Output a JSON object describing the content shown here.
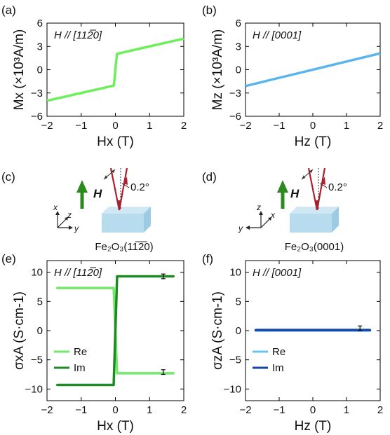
{
  "panel_labels": [
    "(a)",
    "(b)",
    "(c)",
    "(d)",
    "(e)",
    "(f)"
  ],
  "colors": {
    "green_light": "#6cf05a",
    "green_re": "#72e96a",
    "green_im": "#1f8a22",
    "blue_line": "#5ab4ee",
    "blue_re": "#6dc3f0",
    "blue_im": "#1545a6",
    "field_arrow": "#2c8a1e",
    "beam": "#b01e2c",
    "crystal_top": "#cfe8f4",
    "crystal_front": "#b7dcee",
    "crystal_side": "#9ccbe4"
  },
  "diagram_c": {
    "field_label": "H",
    "angle_label": "0.2°",
    "axes": [
      "x",
      "z",
      "y"
    ],
    "crystal_label": "Fe₂O₃(11̅2̅0)"
  },
  "diagram_d": {
    "field_label": "H",
    "angle_label": "0.2°",
    "axes": [
      "z",
      "x",
      "y"
    ],
    "crystal_label": "Fe₂O₃(0001)"
  },
  "chart_data": [
    {
      "id": "a",
      "type": "line",
      "annotation": "H // [112̅0]",
      "xlabel": "Hx (T)",
      "ylabel": "Mx (×10³A/m)",
      "xlim": [
        -2,
        2
      ],
      "ylim": [
        -6,
        6
      ],
      "xticks": [
        -2,
        -1,
        0,
        1,
        2
      ],
      "yticks": [
        -6,
        -3,
        0,
        3,
        6
      ],
      "series": [
        {
          "color": "#6cf05a",
          "x": [
            -2,
            -1,
            -0.05,
            -0.02,
            0.02,
            0.05,
            1,
            2
          ],
          "y": [
            -4.0,
            -3.0,
            -2.05,
            -1.0,
            1.0,
            2.05,
            3.0,
            4.0
          ]
        }
      ]
    },
    {
      "id": "b",
      "type": "line",
      "annotation": "H // [0001]",
      "xlabel": "Hz (T)",
      "ylabel": "Mz (×10³A/m)",
      "xlim": [
        -2,
        2
      ],
      "ylim": [
        -6,
        6
      ],
      "xticks": [
        -2,
        -1,
        0,
        1,
        2
      ],
      "yticks": [
        -6,
        -3,
        0,
        3,
        6
      ],
      "series": [
        {
          "color": "#5ab4ee",
          "x": [
            -2,
            2
          ],
          "y": [
            -2.1,
            2.1
          ]
        }
      ]
    },
    {
      "id": "e",
      "type": "line",
      "annotation": "H // [112̅0]",
      "xlabel": "Hx (T)",
      "ylabel": "σxA (S·cm-1)",
      "xlim": [
        -2,
        2
      ],
      "ylim": [
        -12,
        12
      ],
      "xticks": [
        -2,
        -1,
        0,
        1,
        2
      ],
      "yticks": [
        -10,
        -5,
        0,
        5,
        10
      ],
      "legend_position": "bottom-left",
      "errorbar": [
        {
          "x": 1.4,
          "y": 9.3,
          "err": 0.4
        },
        {
          "x": 1.4,
          "y": -7.1,
          "err": 0.4
        }
      ],
      "series": [
        {
          "name": "Re",
          "color": "#72e96a",
          "x": [
            -1.7,
            -0.05,
            0.05,
            1.7
          ],
          "y": [
            7.3,
            7.3,
            -7.3,
            -7.3
          ]
        },
        {
          "name": "Im",
          "color": "#1f8a22",
          "x": [
            -1.7,
            -0.05,
            0.05,
            1.7
          ],
          "y": [
            -9.3,
            -9.3,
            9.3,
            9.3
          ]
        }
      ]
    },
    {
      "id": "f",
      "type": "line",
      "annotation": "H // [0001]",
      "xlabel": "Hz (T)",
      "ylabel": "σzA (S·cm-1)",
      "xlim": [
        -2,
        2
      ],
      "ylim": [
        -12,
        12
      ],
      "xticks": [
        -2,
        -1,
        0,
        1,
        2
      ],
      "yticks": [
        -10,
        -5,
        0,
        5,
        10
      ],
      "legend_position": "bottom-left",
      "errorbar": [
        {
          "x": 1.4,
          "y": 0.4,
          "err": 0.4
        }
      ],
      "series": [
        {
          "name": "Re",
          "color": "#6dc3f0",
          "x": [
            -1.7,
            1.7
          ],
          "y": [
            0.0,
            0.0
          ]
        },
        {
          "name": "Im",
          "color": "#1545a6",
          "x": [
            -1.7,
            1.7
          ],
          "y": [
            0.1,
            0.1
          ]
        }
      ]
    }
  ]
}
